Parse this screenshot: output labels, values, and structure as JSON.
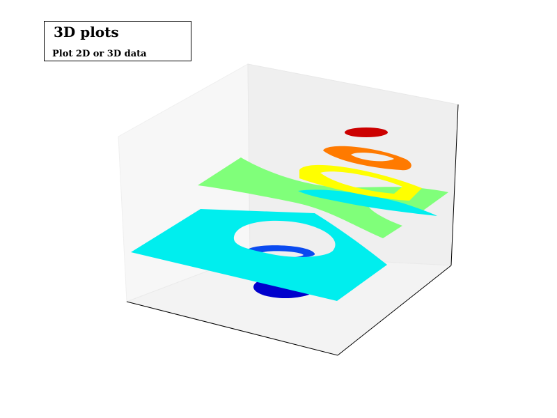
{
  "title_box": {
    "title": "3D plots",
    "subtitle": "Plot 2D or 3D data"
  },
  "chart_data": {
    "type": "contour3d",
    "projection": "3d",
    "grid": false,
    "axes_ticks": "none",
    "colormap": "jet",
    "levels": [
      {
        "level_index": 0,
        "color": "#0000cc",
        "shape": "ellipse"
      },
      {
        "level_index": 1,
        "color": "#0a4af0",
        "shape": "annulus"
      },
      {
        "level_index": 2,
        "color": "#00eeee",
        "shape": "plane-with-hole"
      },
      {
        "level_index": 3,
        "color": "#80ff7a",
        "shape": "saddle"
      },
      {
        "level_index": 4,
        "color": "#00eeee",
        "shape": "band"
      },
      {
        "level_index": 5,
        "color": "#ffff00",
        "shape": "annulus"
      },
      {
        "level_index": 6,
        "color": "#ff7a00",
        "shape": "annulus"
      },
      {
        "level_index": 7,
        "color": "#cc0000",
        "shape": "ellipse"
      }
    ]
  }
}
